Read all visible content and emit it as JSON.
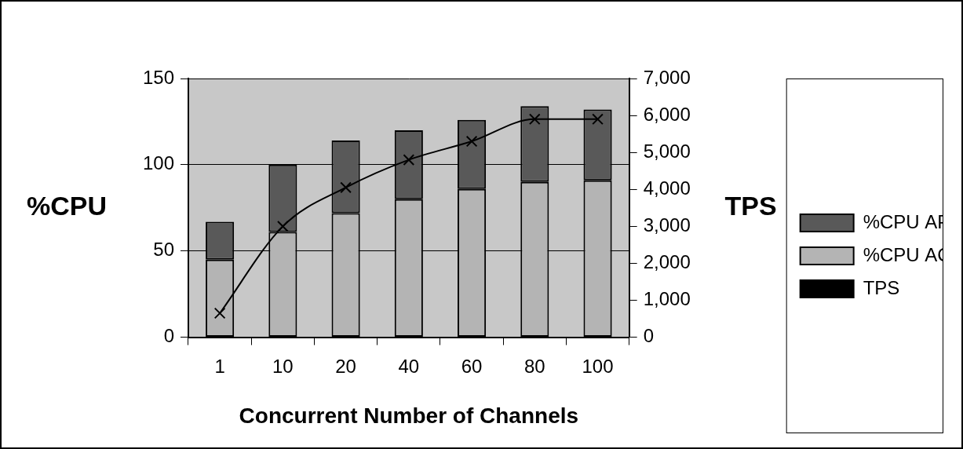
{
  "chart_data": {
    "type": "bar",
    "categories": [
      "1",
      "10",
      "20",
      "40",
      "60",
      "80",
      "100"
    ],
    "x_label": "Concurrent Number of Channels",
    "y_label": "%CPU",
    "y2_label": "TPS",
    "stacked": true,
    "grid": true,
    "legend": "right",
    "ylim": [
      0,
      150
    ],
    "yticks": [
      0,
      50,
      100,
      150
    ],
    "y2lim": [
      0,
      7000
    ],
    "y2ticks": [
      0,
      1000,
      2000,
      3000,
      4000,
      5000,
      6000,
      7000
    ],
    "series": [
      {
        "name": "%CPU ACP",
        "type": "bar",
        "color": "#b4b4b4",
        "values": [
          45,
          61,
          72,
          80,
          86,
          90,
          91
        ]
      },
      {
        "name": "%CPU APP",
        "type": "bar",
        "color": "#595959",
        "values": [
          22,
          39,
          42,
          40,
          40,
          44,
          41
        ]
      },
      {
        "name": "TPS",
        "type": "line",
        "axis": "y2",
        "color": "#000000",
        "marker": "x",
        "line_style": "solid",
        "values": [
          650,
          3000,
          4050,
          4800,
          5300,
          5900,
          5900
        ]
      }
    ]
  }
}
